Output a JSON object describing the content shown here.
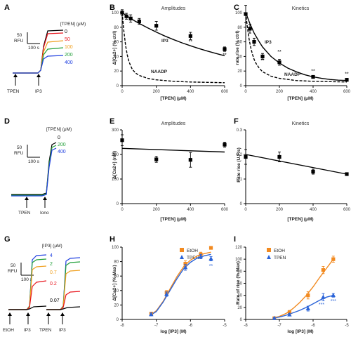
{
  "panels": {
    "A": "A",
    "B": "B",
    "C": "C",
    "D": "D",
    "E": "E",
    "F": "F",
    "G": "G",
    "H": "H",
    "I": "I"
  },
  "colors": {
    "black": "#000000",
    "red": "#e8141c",
    "orange": "#f0a020",
    "green": "#22a03a",
    "blue": "#2040e0",
    "etoh": "#f28a20",
    "tpen": "#2a63d8"
  },
  "trace_A": {
    "header": "[TPEN] (μM)",
    "labels": [
      "0",
      "50",
      "100",
      "200",
      "400"
    ],
    "scale_value": "50",
    "scale_unit": "RFU",
    "scale_time": "100 s",
    "arrows": [
      "TPEN",
      "IP3"
    ]
  },
  "trace_D": {
    "header": "[TPEN] (μM)",
    "labels": [
      "0",
      "200",
      "400"
    ],
    "scale_value": "50",
    "scale_unit": "RFU",
    "scale_time": "100 s",
    "arrows": [
      "TPEN",
      "Iono"
    ]
  },
  "trace_G": {
    "header": "[IP3] (μM)",
    "labels": [
      "4",
      "2",
      "0.7",
      "0.2",
      "0.07"
    ],
    "scale_value": "50",
    "scale_unit": "RFU",
    "scale_time": "100 s",
    "arrows": [
      "EtOH",
      "IP3",
      "TPEN",
      "IP3"
    ]
  },
  "chart_data": [
    {
      "type": "scatter",
      "title": "Amplitudes",
      "xlabel": "[TPEN] (μM)",
      "ylabel": "Δ[Ca2+] (% ctrl)",
      "xlim": [
        0,
        600
      ],
      "ylim": [
        0,
        100
      ],
      "xticks": [
        0,
        200,
        400,
        600
      ],
      "yticks": [
        0,
        20,
        40,
        60,
        80,
        100
      ],
      "series": [
        {
          "name": "IP3",
          "x": [
            0,
            25,
            50,
            100,
            200,
            400,
            600
          ],
          "y": [
            100,
            95,
            92,
            88,
            82,
            68,
            50
          ],
          "err": [
            4,
            4,
            5,
            4,
            6,
            5,
            3
          ],
          "marker": "square"
        }
      ],
      "fits": [
        {
          "x": [
            0,
            25,
            50,
            75,
            100,
            150,
            200,
            250,
            300,
            350,
            400,
            450,
            500,
            550,
            600
          ],
          "y": [
            100,
            96,
            92,
            88.5,
            85.2,
            79,
            73.3,
            68,
            63.2,
            58.7,
            54.6,
            50.8,
            47.3,
            44,
            41
          ],
          "dash": false
        },
        {
          "x": [
            0,
            10,
            20,
            30,
            40,
            50,
            60,
            80,
            100,
            150,
            200,
            300,
            400,
            500,
            600
          ],
          "y": [
            100,
            75,
            55,
            42,
            33,
            27,
            22,
            17,
            14,
            10,
            8,
            6,
            5,
            4.5,
            4
          ],
          "dash": true
        }
      ],
      "stars": [
        {
          "x": 200,
          "y": 80,
          "text": "*"
        },
        {
          "x": 400,
          "y": 58,
          "text": "**"
        },
        {
          "x": 600,
          "y": 40,
          "text": "**"
        }
      ],
      "annotations": [
        "IP3",
        "NAADP"
      ]
    },
    {
      "type": "scatter",
      "title": "Kinetics",
      "xlabel": "[TPEN] (μM)",
      "ylabel": "rate rise (% ctrl)",
      "xlim": [
        0,
        600
      ],
      "ylim": [
        0,
        100
      ],
      "xticks": [
        0,
        200,
        400,
        600
      ],
      "yticks": [
        0,
        20,
        40,
        60,
        80,
        100
      ],
      "series": [
        {
          "name": "IP3",
          "x": [
            0,
            25,
            50,
            100,
            200,
            400,
            600
          ],
          "y": [
            98,
            78,
            60,
            40,
            32,
            12,
            8
          ],
          "err": [
            12,
            6,
            5,
            4,
            4,
            2,
            2
          ],
          "marker": "square"
        }
      ],
      "fits": [
        {
          "x": [
            0,
            25,
            50,
            75,
            100,
            150,
            200,
            250,
            300,
            350,
            400,
            450,
            500,
            550,
            600
          ],
          "y": [
            100,
            85,
            72,
            62,
            53,
            40,
            31,
            24,
            19,
            15,
            12,
            10,
            8.5,
            7.5,
            7
          ],
          "dash": false
        },
        {
          "x": [
            0,
            10,
            20,
            30,
            40,
            50,
            60,
            80,
            100,
            150,
            200,
            300,
            400,
            500,
            600
          ],
          "y": [
            100,
            80,
            64,
            52,
            43,
            36,
            31,
            24,
            19,
            13,
            10,
            7,
            6,
            5.5,
            5
          ],
          "dash": true
        }
      ],
      "stars": [
        {
          "x": 100,
          "y": 32,
          "text": "**"
        },
        {
          "x": 200,
          "y": 44,
          "text": "**"
        },
        {
          "x": 400,
          "y": 18,
          "text": "**"
        },
        {
          "x": 600,
          "y": 14,
          "text": "**"
        }
      ],
      "annotations": [
        "IP3",
        "NAADP"
      ]
    },
    {
      "type": "scatter",
      "title": "Amplitudes",
      "xlabel": "[TPEN] (μM)",
      "ylabel": "Δ[Ca2+] (nM)",
      "xlim": [
        0,
        600
      ],
      "ylim": [
        0,
        300
      ],
      "xticks": [
        0,
        200,
        400,
        600
      ],
      "yticks": [
        0,
        100,
        200,
        300
      ],
      "series": [
        {
          "name": "Iono",
          "x": [
            0,
            200,
            400,
            600
          ],
          "y": [
            258,
            180,
            178,
            240
          ],
          "err": [
            22,
            12,
            30,
            10
          ],
          "marker": "square"
        }
      ],
      "fits": [
        {
          "x": [
            0,
            600
          ],
          "y": [
            225,
            210
          ],
          "dash": false
        }
      ],
      "stars": [],
      "annotations": []
    },
    {
      "type": "scatter",
      "title": "Kinetics",
      "xlabel": "[TPEN] (μM)",
      "ylabel": "Rate rise (U.F/s)",
      "xlim": [
        0,
        600
      ],
      "ylim": [
        0,
        0.3
      ],
      "xticks": [
        0,
        200,
        400,
        600
      ],
      "yticks": [
        0,
        0.1,
        0.2,
        0.3
      ],
      "series": [
        {
          "name": "Iono",
          "x": [
            0,
            200,
            400,
            600
          ],
          "y": [
            0.19,
            0.19,
            0.13,
            0.12
          ],
          "err": [
            0.03,
            0.02,
            0.01,
            0.005
          ],
          "marker": "square"
        }
      ],
      "fits": [
        {
          "x": [
            0,
            600
          ],
          "y": [
            0.2,
            0.12
          ],
          "dash": false
        }
      ],
      "stars": [],
      "annotations": []
    },
    {
      "type": "scatter",
      "title": "",
      "xlabel": "log [IP3] (M)",
      "ylabel": "Δ[Ca2+] (% Max)",
      "xlim": [
        -8,
        -5
      ],
      "ylim": [
        0,
        100
      ],
      "xticks": [
        -8,
        -7,
        -6,
        -5
      ],
      "xticklabels": [
        "-8",
        "-7",
        "-6",
        "-5"
      ],
      "yticks": [
        0,
        20,
        40,
        60,
        80,
        100
      ],
      "series": [
        {
          "name": "EtOH",
          "color": "#f28a20",
          "marker": "square",
          "x": [
            -7.15,
            -6.7,
            -6.15,
            -5.7,
            -5.4
          ],
          "y": [
            8,
            37,
            77,
            90,
            99
          ],
          "err": [
            2,
            3,
            4,
            3,
            2
          ]
        },
        {
          "name": "TPEN",
          "color": "#2a63d8",
          "marker": "triangle",
          "x": [
            -7.15,
            -6.7,
            -6.15,
            -5.7,
            -5.4
          ],
          "y": [
            7,
            35,
            72,
            87,
            84
          ],
          "err": [
            2,
            3,
            4,
            3,
            3
          ]
        }
      ],
      "fits": [
        {
          "color": "#f28a20",
          "x": [
            -7.2,
            -7.0,
            -6.8,
            -6.6,
            -6.4,
            -6.2,
            -6.0,
            -5.8,
            -5.6,
            -5.4
          ],
          "y": [
            5,
            12,
            25,
            42,
            59,
            73,
            82,
            88,
            91,
            93
          ],
          "dash": false
        },
        {
          "color": "#2a63d8",
          "x": [
            -7.2,
            -7.0,
            -6.8,
            -6.6,
            -6.4,
            -6.2,
            -6.0,
            -5.8,
            -5.6,
            -5.4
          ],
          "y": [
            5,
            11,
            24,
            40,
            56,
            70,
            79,
            85,
            88,
            90
          ],
          "dash": false
        }
      ],
      "stars": [
        {
          "x": -5.4,
          "y": 72,
          "text": "**"
        }
      ],
      "annotations": []
    },
    {
      "type": "scatter",
      "title": "",
      "xlabel": "log [IP3] (M)",
      "ylabel": "Rate of rise (% Max)",
      "xlim": [
        -8,
        -5
      ],
      "ylim": [
        0,
        120
      ],
      "xticks": [
        -8,
        -7,
        -6,
        -5
      ],
      "xticklabels": [
        "-8",
        "-7",
        "-6",
        "-5"
      ],
      "yticks": [
        0,
        20,
        40,
        60,
        80,
        100,
        120
      ],
      "series": [
        {
          "name": "EtOH",
          "color": "#f28a20",
          "marker": "square",
          "x": [
            -7.15,
            -6.7,
            -6.15,
            -5.7,
            -5.4
          ],
          "y": [
            2,
            12,
            40,
            82,
            100
          ],
          "err": [
            1,
            3,
            6,
            6,
            5
          ]
        },
        {
          "name": "TPEN",
          "color": "#2a63d8",
          "marker": "triangle",
          "x": [
            -7.15,
            -6.7,
            -6.15,
            -5.7,
            -5.4
          ],
          "y": [
            2,
            8,
            18,
            37,
            40
          ],
          "err": [
            1,
            2,
            4,
            6,
            3
          ]
        }
      ],
      "fits": [
        {
          "color": "#f28a20",
          "x": [
            -7.2,
            -7.0,
            -6.8,
            -6.6,
            -6.4,
            -6.2,
            -6.0,
            -5.8,
            -5.6,
            -5.4
          ],
          "y": [
            2,
            5,
            10,
            18,
            28,
            40,
            54,
            70,
            85,
            100
          ],
          "dash": false
        },
        {
          "color": "#2a63d8",
          "x": [
            -7.2,
            -7.0,
            -6.8,
            -6.6,
            -6.4,
            -6.2,
            -6.0,
            -5.8,
            -5.6,
            -5.4
          ],
          "y": [
            2,
            4,
            7,
            11,
            15,
            20,
            26,
            32,
            37,
            40
          ],
          "dash": false
        }
      ],
      "stars": [
        {
          "x": -5.75,
          "y": 22,
          "text": "***"
        },
        {
          "x": -5.4,
          "y": 28,
          "text": "***"
        }
      ],
      "annotations": []
    }
  ]
}
